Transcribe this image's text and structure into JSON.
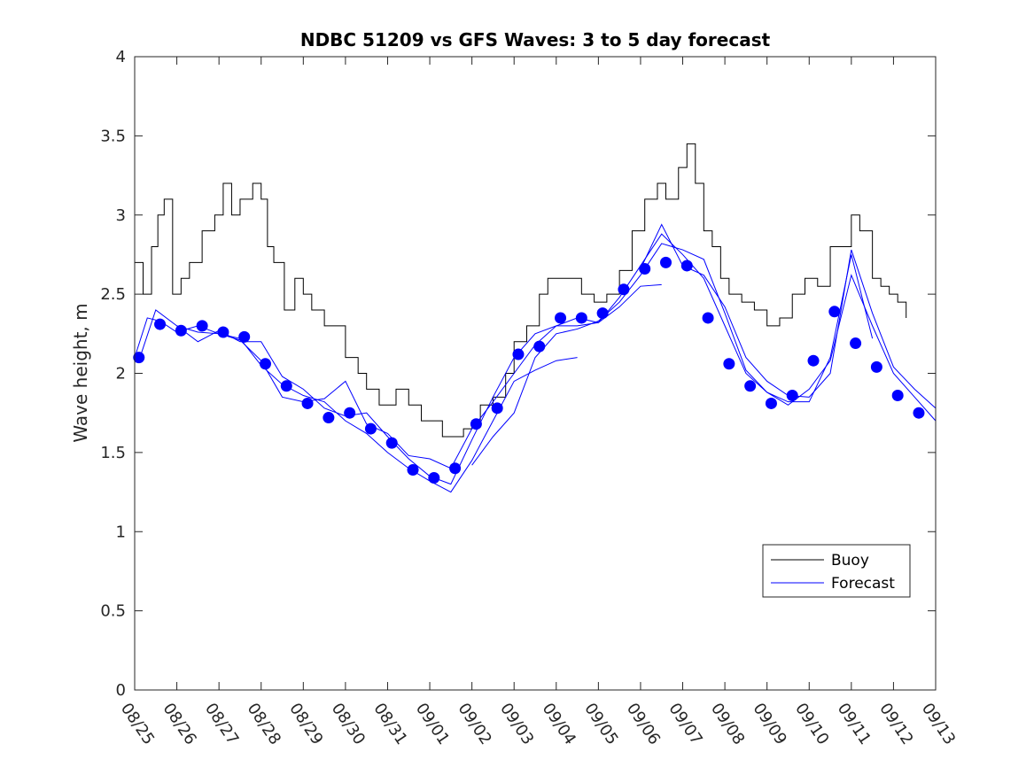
{
  "chart_data": {
    "type": "line",
    "title": "NDBC 51209 vs GFS Waves: 3 to 5 day forecast",
    "xlabel": "",
    "ylabel": "Wave height, m",
    "ylim": [
      0,
      4
    ],
    "xlim_days": [
      0,
      19
    ],
    "y_ticks": [
      0,
      0.5,
      1,
      1.5,
      2,
      2.5,
      3,
      3.5,
      4
    ],
    "y_tick_labels": [
      "0",
      "0.5",
      "1",
      "1.5",
      "2",
      "2.5",
      "3",
      "3.5",
      "4"
    ],
    "x_tick_labels": [
      "08/25",
      "08/26",
      "08/27",
      "08/28",
      "08/29",
      "08/30",
      "08/31",
      "09/01",
      "09/02",
      "09/03",
      "09/04",
      "09/05",
      "09/06",
      "09/07",
      "09/08",
      "09/09",
      "09/10",
      "09/11",
      "09/12",
      "09/13"
    ],
    "legend": {
      "position": "bottom-right",
      "entries": [
        "Buoy",
        "Forecast"
      ]
    },
    "colors": {
      "buoy": "#000000",
      "forecast": "#0000ff",
      "axes": "#262626"
    },
    "buoy": {
      "name": "Buoy",
      "x": [
        0,
        0.2,
        0.4,
        0.55,
        0.7,
        0.9,
        1.1,
        1.3,
        1.6,
        1.9,
        2.1,
        2.3,
        2.5,
        2.8,
        3.0,
        3.15,
        3.3,
        3.55,
        3.8,
        4.0,
        4.2,
        4.5,
        4.8,
        5.0,
        5.3,
        5.5,
        5.8,
        6.0,
        6.2,
        6.5,
        6.8,
        7.0,
        7.3,
        7.5,
        7.8,
        8.0,
        8.2,
        8.5,
        8.8,
        9.0,
        9.3,
        9.6,
        9.8,
        10.0,
        10.3,
        10.6,
        10.9,
        11.2,
        11.5,
        11.8,
        12.1,
        12.4,
        12.6,
        12.9,
        13.1,
        13.3,
        13.5,
        13.7,
        13.9,
        14.1,
        14.4,
        14.7,
        15.0,
        15.3,
        15.6,
        15.9,
        16.2,
        16.5,
        16.8,
        17.0,
        17.2,
        17.5,
        17.7,
        17.9,
        18.1,
        18.3
      ],
      "y": [
        2.7,
        2.5,
        2.8,
        3.0,
        3.1,
        2.5,
        2.6,
        2.7,
        2.9,
        3.0,
        3.2,
        3.0,
        3.1,
        3.2,
        3.1,
        2.8,
        2.7,
        2.4,
        2.6,
        2.5,
        2.4,
        2.3,
        2.3,
        2.1,
        2.0,
        1.9,
        1.8,
        1.8,
        1.9,
        1.8,
        1.7,
        1.7,
        1.6,
        1.6,
        1.65,
        1.7,
        1.8,
        1.85,
        2.0,
        2.2,
        2.3,
        2.5,
        2.6,
        2.6,
        2.6,
        2.5,
        2.45,
        2.5,
        2.65,
        2.9,
        3.1,
        3.2,
        3.1,
        3.3,
        3.45,
        3.2,
        2.9,
        2.8,
        2.6,
        2.5,
        2.45,
        2.4,
        2.3,
        2.35,
        2.5,
        2.6,
        2.55,
        2.8,
        2.8,
        3.0,
        2.9,
        2.6,
        2.55,
        2.5,
        2.45,
        2.35
      ]
    },
    "forecast_markers": {
      "x": [
        0.1,
        0.6,
        1.1,
        1.6,
        2.1,
        2.6,
        3.1,
        3.6,
        4.1,
        4.6,
        5.1,
        5.6,
        6.1,
        6.6,
        7.1,
        7.6,
        8.1,
        8.6,
        9.1,
        9.6,
        10.1,
        10.6,
        11.1,
        11.6,
        12.1,
        12.6,
        13.1,
        13.6,
        14.1,
        14.6,
        15.1,
        15.6,
        16.1,
        16.6,
        17.1,
        17.6,
        18.1,
        18.6
      ],
      "y": [
        2.1,
        2.31,
        2.27,
        2.3,
        2.26,
        2.23,
        2.06,
        1.92,
        1.81,
        1.72,
        1.75,
        1.65,
        1.56,
        1.39,
        1.34,
        1.4,
        1.68,
        1.78,
        2.12,
        2.17,
        2.35,
        2.35,
        2.38,
        2.53,
        2.66,
        2.7,
        2.68,
        2.35,
        2.06,
        1.92,
        1.81,
        1.86,
        2.08,
        2.39,
        2.19,
        2.04,
        1.86,
        1.75
      ]
    },
    "forecast_runs": [
      {
        "x": [
          0,
          0.3,
          0.6,
          1.0,
          1.5,
          2.0,
          2.5,
          3.0,
          3.5,
          4.0,
          4.5,
          5.0,
          5.5,
          6.0,
          6.5,
          7.0,
          7.5,
          8.0,
          8.5,
          9.0,
          9.5,
          10.0,
          10.5
        ],
        "y": [
          2.1,
          2.35,
          2.33,
          2.26,
          2.3,
          2.25,
          2.22,
          2.05,
          1.93,
          1.86,
          1.82,
          1.7,
          1.62,
          1.5,
          1.4,
          1.32,
          1.25,
          1.45,
          1.7,
          1.95,
          2.02,
          2.08,
          2.1
        ]
      },
      {
        "x": [
          0.1,
          0.5,
          1.0,
          1.5,
          2.0,
          2.5,
          3.0,
          3.5,
          4.0,
          4.5,
          5.0,
          5.5,
          6.0,
          6.5,
          7.0,
          7.5,
          8.0,
          8.5,
          9.0,
          9.5,
          10.0,
          10.5,
          11.0,
          11.5,
          12.0,
          12.5
        ],
        "y": [
          2.08,
          2.4,
          2.3,
          2.2,
          2.27,
          2.2,
          2.2,
          1.98,
          1.9,
          1.78,
          1.73,
          1.75,
          1.6,
          1.46,
          1.35,
          1.3,
          1.58,
          1.85,
          2.1,
          2.25,
          2.3,
          2.3,
          2.32,
          2.42,
          2.55,
          2.56
        ]
      },
      {
        "x": [
          1.0,
          1.5,
          2.0,
          2.5,
          3.0,
          3.5,
          4.0,
          4.5,
          5.0,
          5.5,
          6.0,
          6.5,
          7.0,
          7.5,
          8.0,
          8.5,
          9.0,
          9.5,
          10.0,
          10.5,
          11.0,
          11.5,
          12.0,
          12.5,
          13.0,
          13.5,
          14.0,
          14.5,
          15.0,
          15.5,
          16.0,
          16.5,
          17.0,
          17.5
        ],
        "y": [
          2.3,
          2.26,
          2.25,
          2.21,
          2.08,
          1.85,
          1.82,
          1.84,
          1.95,
          1.68,
          1.62,
          1.48,
          1.46,
          1.4,
          1.65,
          1.82,
          2.0,
          2.18,
          2.3,
          2.35,
          2.32,
          2.48,
          2.68,
          2.88,
          2.75,
          2.6,
          2.3,
          2.0,
          1.88,
          1.82,
          1.82,
          2.1,
          2.75,
          2.22
        ]
      },
      {
        "x": [
          8.0,
          8.5,
          9.0,
          9.5,
          10.0,
          10.5,
          11.0,
          11.5,
          12.0,
          12.5,
          13.0,
          13.5,
          14.0,
          14.5,
          15.0,
          15.5,
          16.0,
          16.5,
          17.0,
          17.5,
          18.0,
          18.5,
          19.0
        ],
        "y": [
          1.42,
          1.6,
          1.75,
          2.1,
          2.25,
          2.28,
          2.33,
          2.45,
          2.62,
          2.82,
          2.78,
          2.72,
          2.38,
          2.02,
          1.88,
          1.8,
          1.9,
          2.08,
          2.62,
          2.3,
          2.0,
          1.85,
          1.7
        ]
      },
      {
        "x": [
          12.0,
          12.5,
          13.0,
          13.5,
          14.0,
          14.5,
          15.0,
          15.5,
          16.0,
          16.5,
          17.0,
          17.5,
          18.0,
          18.5,
          19.0
        ],
        "y": [
          2.66,
          2.94,
          2.68,
          2.62,
          2.42,
          2.1,
          1.95,
          1.86,
          1.85,
          2.0,
          2.78,
          2.38,
          2.04,
          1.9,
          1.78
        ]
      }
    ]
  }
}
